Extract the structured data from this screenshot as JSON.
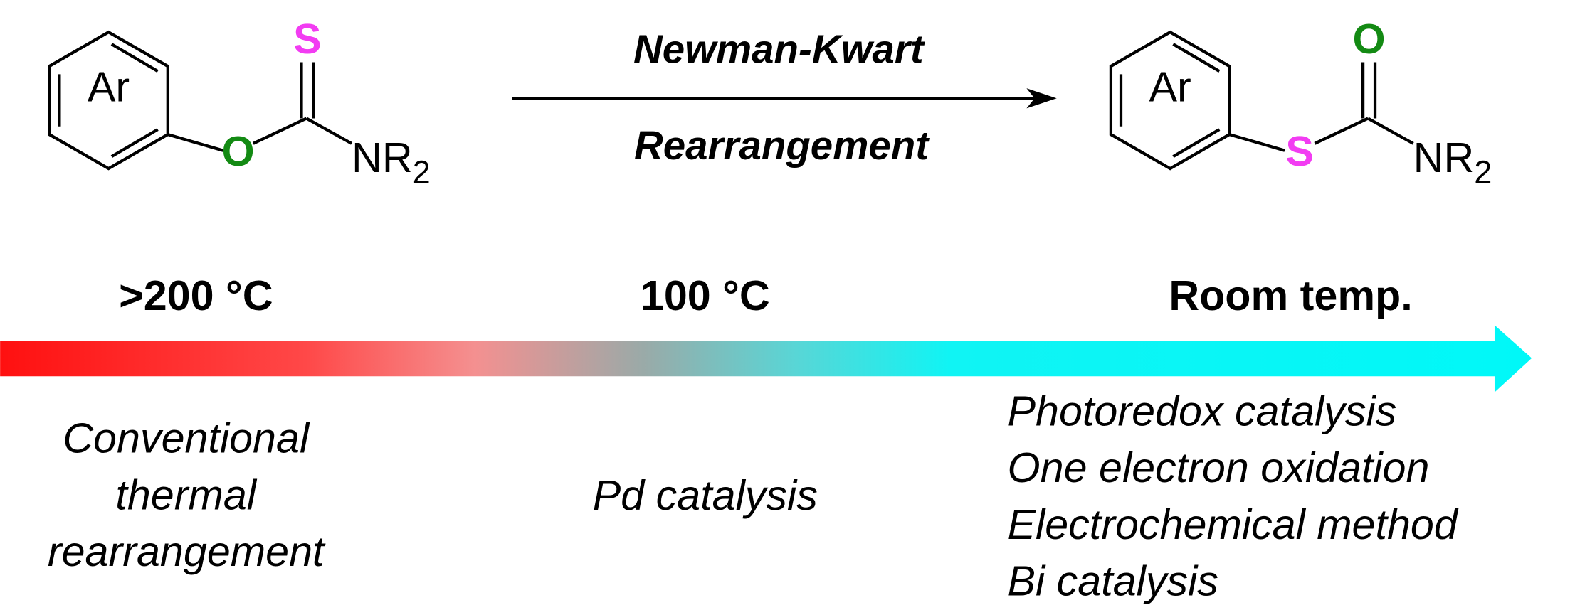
{
  "reaction": {
    "label_top": "Newman-Kwart",
    "label_bottom": "Rearrangement",
    "reactant": {
      "ring": "Ar",
      "double_bonded_atom": "S",
      "linker_atom": "O",
      "amine": "NR",
      "amine_subscript": "2"
    },
    "product": {
      "ring": "Ar",
      "double_bonded_atom": "O",
      "linker_atom": "S",
      "amine": "NR",
      "amine_subscript": "2"
    }
  },
  "temperatures": [
    ">200 °C",
    "100 °C",
    "Room temp."
  ],
  "methods": [
    {
      "lines": [
        "Conventional",
        "thermal",
        "rearrangement"
      ]
    },
    {
      "lines": [
        "Pd catalysis"
      ]
    },
    {
      "lines": [
        "Photoredox catalysis",
        "One electron oxidation",
        "Electrochemical method",
        "Bi catalysis"
      ]
    }
  ]
}
